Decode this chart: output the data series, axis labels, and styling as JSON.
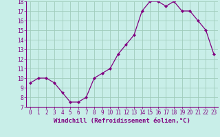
{
  "x": [
    0,
    1,
    2,
    3,
    4,
    5,
    6,
    7,
    8,
    9,
    10,
    11,
    12,
    13,
    14,
    15,
    16,
    17,
    18,
    19,
    20,
    21,
    22,
    23
  ],
  "y": [
    9.5,
    10.0,
    10.0,
    9.5,
    8.5,
    7.5,
    7.5,
    8.0,
    10.0,
    10.5,
    11.0,
    12.5,
    13.5,
    14.5,
    17.0,
    18.0,
    18.0,
    17.5,
    18.0,
    17.0,
    17.0,
    16.0,
    15.0,
    12.5
  ],
  "ylim": [
    7,
    18
  ],
  "yticks": [
    7,
    8,
    9,
    10,
    11,
    12,
    13,
    14,
    15,
    16,
    17,
    18
  ],
  "xticks": [
    0,
    1,
    2,
    3,
    4,
    5,
    6,
    7,
    8,
    9,
    10,
    11,
    12,
    13,
    14,
    15,
    16,
    17,
    18,
    19,
    20,
    21,
    22,
    23
  ],
  "xlabel": "Windchill (Refroidissement éolien,°C)",
  "line_color": "#800080",
  "marker": "D",
  "marker_size": 2.0,
  "bg_color": "#c8eee8",
  "grid_color": "#a0ccbb",
  "label_fontsize": 6.5,
  "tick_fontsize": 5.5
}
